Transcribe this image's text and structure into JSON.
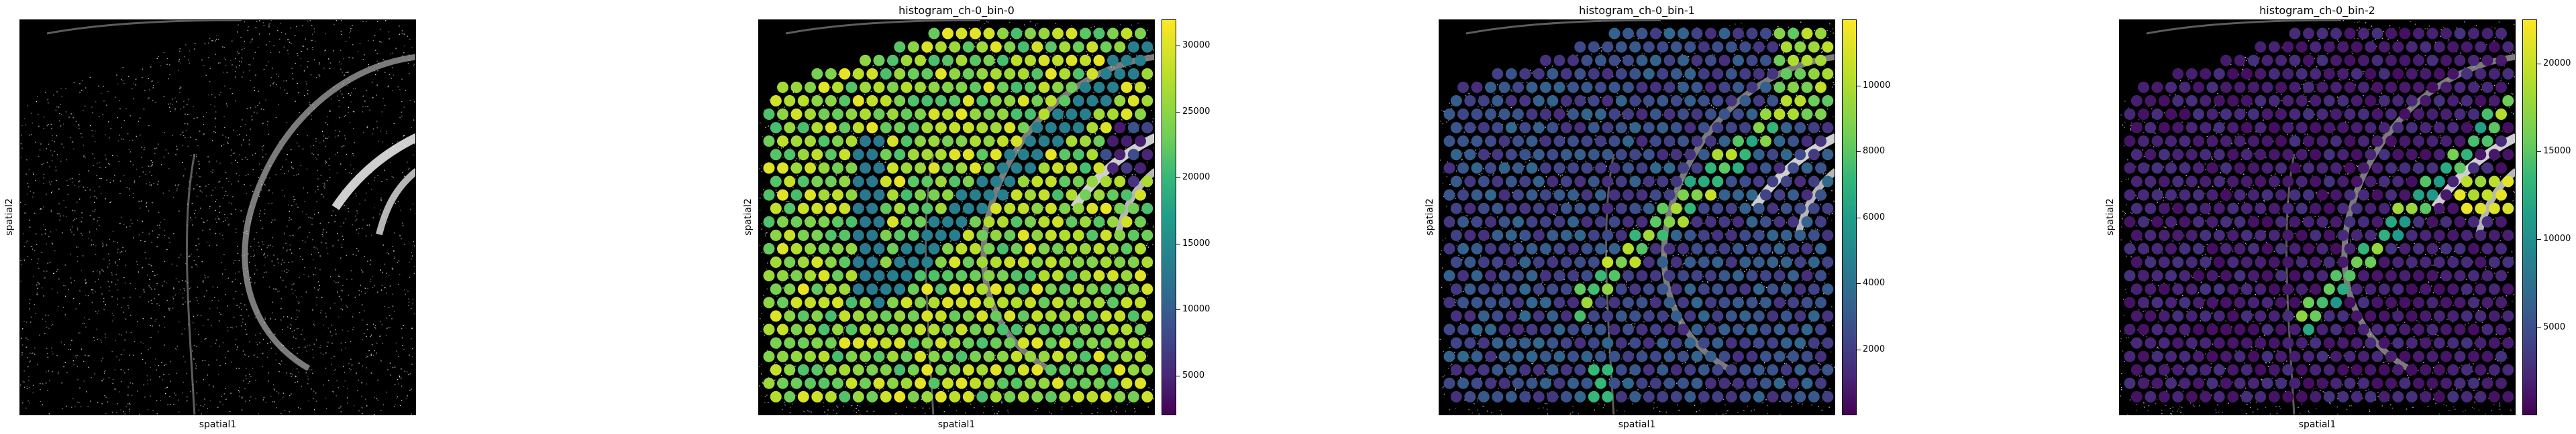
{
  "panels": [
    {
      "title": "",
      "xlabel": "spatial1",
      "ylabel": "spatial2",
      "colorbar": null
    },
    {
      "title": "histogram_ch-0_bin-0",
      "xlabel": "spatial1",
      "ylabel": "spatial2",
      "colorbar": {
        "min": 2000,
        "max": 32000,
        "ticks": [
          5000,
          10000,
          15000,
          20000,
          25000,
          30000
        ]
      }
    },
    {
      "title": "histogram_ch-0_bin-1",
      "xlabel": "spatial1",
      "ylabel": "spatial2",
      "colorbar": {
        "min": 0,
        "max": 12000,
        "ticks": [
          2000,
          4000,
          6000,
          8000,
          10000
        ]
      }
    },
    {
      "title": "histogram_ch-0_bin-2",
      "xlabel": "spatial1",
      "ylabel": "spatial2",
      "colorbar": {
        "min": 0,
        "max": 22500,
        "ticks": [
          5000,
          10000,
          15000,
          20000
        ]
      }
    }
  ],
  "chart_data": [
    {
      "type": "heatmap",
      "title": "",
      "xlabel": "spatial1",
      "ylabel": "spatial2",
      "colormap": "grayscale tissue image",
      "grid": false
    },
    {
      "type": "scatter",
      "title": "histogram_ch-0_bin-0",
      "xlabel": "spatial1",
      "ylabel": "spatial2",
      "colormap": "viridis",
      "color_range": [
        2000,
        32000
      ],
      "colorbar_ticks": [
        5000,
        10000,
        15000,
        20000,
        25000,
        30000
      ],
      "grid": false,
      "legend": "colorbar-right"
    },
    {
      "type": "scatter",
      "title": "histogram_ch-0_bin-1",
      "xlabel": "spatial1",
      "ylabel": "spatial2",
      "colormap": "viridis",
      "color_range": [
        0,
        12000
      ],
      "colorbar_ticks": [
        2000,
        4000,
        6000,
        8000,
        10000
      ],
      "grid": false,
      "legend": "colorbar-right"
    },
    {
      "type": "scatter",
      "title": "histogram_ch-0_bin-2",
      "xlabel": "spatial1",
      "ylabel": "spatial2",
      "colormap": "viridis",
      "color_range": [
        0,
        22500
      ],
      "colorbar_ticks": [
        5000,
        10000,
        15000,
        20000
      ],
      "grid": false,
      "legend": "colorbar-right"
    }
  ]
}
